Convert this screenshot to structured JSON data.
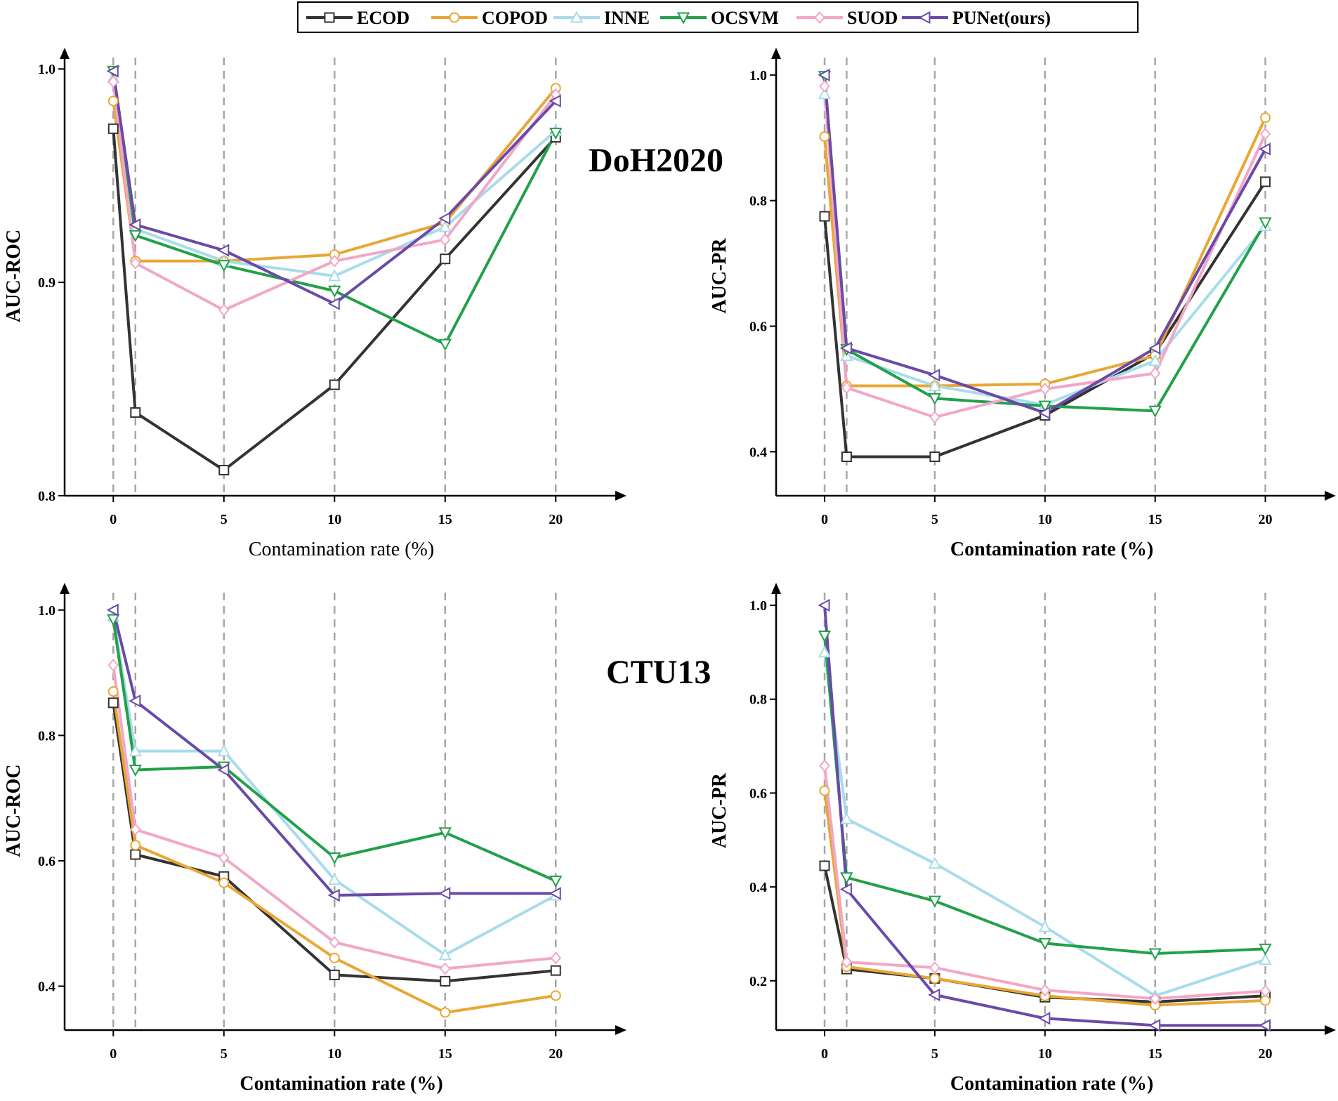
{
  "legend": {
    "items": [
      {
        "name": "ECOD",
        "color": "#333333",
        "marker": "square"
      },
      {
        "name": "COPOD",
        "color": "#e8a735",
        "marker": "circle"
      },
      {
        "name": "INNE",
        "color": "#a8dcea",
        "marker": "triangle-up"
      },
      {
        "name": "OCSVM",
        "color": "#22a04a",
        "marker": "triangle-down"
      },
      {
        "name": "SUOD",
        "color": "#f2a6c8",
        "marker": "diamond"
      },
      {
        "name": "PUNet(ours)",
        "color": "#6a4aa8",
        "marker": "triangle-left"
      }
    ]
  },
  "dataset_labels": [
    "DoH2020",
    "CTU13"
  ],
  "chart_data": [
    {
      "type": "line",
      "dataset": "DoH2020",
      "xlabel": "Contamination rate (%)",
      "ylabel": "AUC-ROC",
      "x": [
        0,
        1,
        5,
        10,
        15,
        20
      ],
      "xticks": [
        0,
        5,
        10,
        15,
        20
      ],
      "xticklabels": [
        "0",
        "5",
        "10",
        "15",
        "20"
      ],
      "yticks": [
        0.8,
        0.9,
        1.0
      ],
      "yticklabels": [
        "0.8",
        "0.9",
        "1.0"
      ],
      "xlim": [
        -2.2,
        22.5
      ],
      "ylim": [
        0.8,
        1.006
      ],
      "series": [
        {
          "name": "ECOD",
          "values": [
            0.972,
            0.839,
            0.812,
            0.852,
            0.911,
            0.968
          ]
        },
        {
          "name": "COPOD",
          "values": [
            0.985,
            0.91,
            0.91,
            0.913,
            0.928,
            0.991
          ]
        },
        {
          "name": "INNE",
          "values": [
            0.996,
            0.925,
            0.91,
            0.903,
            0.926,
            0.971
          ]
        },
        {
          "name": "OCSVM",
          "values": [
            0.999,
            0.922,
            0.908,
            0.896,
            0.871,
            0.97
          ]
        },
        {
          "name": "SUOD",
          "values": [
            0.994,
            0.909,
            0.887,
            0.91,
            0.92,
            0.988
          ]
        },
        {
          "name": "PUNet(ours)",
          "values": [
            0.999,
            0.927,
            0.915,
            0.89,
            0.93,
            0.985
          ]
        }
      ]
    },
    {
      "type": "line",
      "dataset": "DoH2020",
      "xlabel": "Contamination rate (%)",
      "ylabel": "AUC-PR",
      "x": [
        0,
        1,
        5,
        10,
        15,
        20
      ],
      "xticks": [
        0,
        5,
        10,
        15,
        20
      ],
      "xticklabels": [
        "0",
        "5",
        "10",
        "15",
        "20"
      ],
      "yticks": [
        0.4,
        0.6,
        0.8,
        1.0
      ],
      "yticklabels": [
        "0.4",
        "0.6",
        "0.8",
        "1.0"
      ],
      "xlim": [
        -2.2,
        22.5
      ],
      "ylim": [
        0.33,
        1.03
      ],
      "series": [
        {
          "name": "ECOD",
          "values": [
            0.775,
            0.392,
            0.392,
            0.458,
            0.557,
            0.83
          ]
        },
        {
          "name": "COPOD",
          "values": [
            0.902,
            0.505,
            0.505,
            0.508,
            0.553,
            0.932
          ]
        },
        {
          "name": "INNE",
          "values": [
            0.97,
            0.553,
            0.505,
            0.475,
            0.545,
            0.76
          ]
        },
        {
          "name": "OCSVM",
          "values": [
            0.998,
            0.563,
            0.485,
            0.473,
            0.465,
            0.765
          ]
        },
        {
          "name": "SUOD",
          "values": [
            0.982,
            0.502,
            0.455,
            0.5,
            0.525,
            0.906
          ]
        },
        {
          "name": "PUNet(ours)",
          "values": [
            1.0,
            0.565,
            0.522,
            0.462,
            0.565,
            0.882
          ]
        }
      ]
    },
    {
      "type": "line",
      "dataset": "CTU13",
      "xlabel": "Contamination rate (%)",
      "ylabel": "AUC-ROC",
      "x": [
        0,
        1,
        5,
        10,
        15,
        20
      ],
      "xticks": [
        0,
        5,
        10,
        15,
        20
      ],
      "xticklabels": [
        "0",
        "5",
        "10",
        "15",
        "20"
      ],
      "yticks": [
        0.4,
        0.6,
        0.8,
        1.0
      ],
      "yticklabels": [
        "0.4",
        "0.6",
        "0.8",
        "1.0"
      ],
      "xlim": [
        -2.2,
        22.5
      ],
      "ylim": [
        0.33,
        1.03
      ],
      "series": [
        {
          "name": "ECOD",
          "values": [
            0.852,
            0.61,
            0.575,
            0.418,
            0.408,
            0.425
          ]
        },
        {
          "name": "COPOD",
          "values": [
            0.87,
            0.625,
            0.565,
            0.445,
            0.358,
            0.385
          ]
        },
        {
          "name": "INNE",
          "values": [
            0.99,
            0.775,
            0.775,
            0.57,
            0.45,
            0.545
          ]
        },
        {
          "name": "OCSVM",
          "values": [
            0.985,
            0.745,
            0.75,
            0.605,
            0.645,
            0.568
          ]
        },
        {
          "name": "SUOD",
          "values": [
            0.912,
            0.65,
            0.605,
            0.47,
            0.428,
            0.445
          ]
        },
        {
          "name": "PUNet(ours)",
          "values": [
            1.0,
            0.855,
            0.745,
            0.545,
            0.548,
            0.548
          ]
        }
      ]
    },
    {
      "type": "line",
      "dataset": "CTU13",
      "xlabel": "Contamination rate (%)",
      "ylabel": "AUC-PR",
      "x": [
        0,
        1,
        5,
        10,
        15,
        20
      ],
      "xticks": [
        0,
        5,
        10,
        15,
        20
      ],
      "xticklabels": [
        "0",
        "5",
        "10",
        "15",
        "20"
      ],
      "yticks": [
        0.2,
        0.4,
        0.6,
        0.8,
        1.0
      ],
      "yticklabels": [
        "0.2",
        "0.4",
        "0.6",
        "0.8",
        "1.0"
      ],
      "xlim": [
        -2.2,
        22.5
      ],
      "ylim": [
        0.095,
        1.03
      ],
      "series": [
        {
          "name": "ECOD",
          "values": [
            0.445,
            0.225,
            0.205,
            0.165,
            0.155,
            0.168
          ]
        },
        {
          "name": "COPOD",
          "values": [
            0.605,
            0.23,
            0.205,
            0.168,
            0.148,
            0.158
          ]
        },
        {
          "name": "INNE",
          "values": [
            0.9,
            0.545,
            0.45,
            0.315,
            0.168,
            0.245
          ]
        },
        {
          "name": "OCSVM",
          "values": [
            0.935,
            0.42,
            0.37,
            0.28,
            0.258,
            0.268
          ]
        },
        {
          "name": "SUOD",
          "values": [
            0.658,
            0.24,
            0.228,
            0.18,
            0.162,
            0.178
          ]
        },
        {
          "name": "PUNet(ours)",
          "values": [
            1.0,
            0.395,
            0.17,
            0.12,
            0.105,
            0.105
          ]
        }
      ]
    }
  ]
}
